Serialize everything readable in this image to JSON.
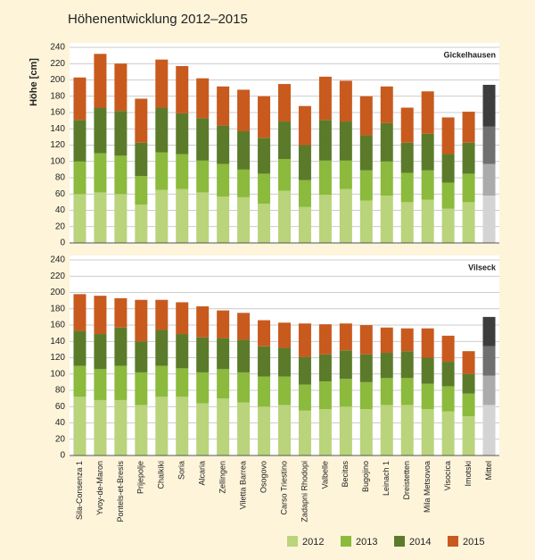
{
  "chart_data": [
    {
      "type": "bar",
      "stacked": true,
      "title": "Höhenentwicklung 2012–2015",
      "y_label": "Höhe [cm]",
      "subtitle": "Gickelhausen",
      "ylim": [
        0,
        240
      ],
      "yticks": [
        0,
        20,
        40,
        60,
        80,
        100,
        120,
        140,
        160,
        180,
        200,
        220,
        240
      ],
      "grid": true,
      "series": [
        {
          "name": "2012",
          "color": "#b9d47a",
          "last_color": "#d4d4d4",
          "values": [
            60,
            62,
            60,
            47,
            65,
            66,
            62,
            57,
            56,
            48,
            64,
            44,
            59,
            66,
            52,
            58,
            50,
            53,
            42,
            50,
            58
          ]
        },
        {
          "name": "2013",
          "color": "#8cba3c",
          "last_color": "#ababab",
          "values": [
            40,
            48,
            47,
            35,
            46,
            43,
            39,
            40,
            34,
            37,
            39,
            33,
            42,
            35,
            37,
            42,
            36,
            36,
            32,
            35,
            39
          ]
        },
        {
          "name": "2014",
          "color": "#5b7b2a",
          "last_color": "#707070",
          "values": [
            51,
            56,
            55,
            41,
            55,
            50,
            52,
            47,
            47,
            44,
            46,
            43,
            50,
            48,
            43,
            47,
            37,
            45,
            35,
            38,
            46
          ]
        },
        {
          "name": "2015",
          "color": "#c85a1e",
          "last_color": "#3d3d3d",
          "values": [
            52,
            66,
            58,
            54,
            59,
            58,
            49,
            48,
            51,
            51,
            46,
            48,
            53,
            50,
            48,
            45,
            43,
            52,
            45,
            38,
            51
          ]
        }
      ]
    },
    {
      "type": "bar",
      "stacked": true,
      "subtitle": "Vilseck",
      "ylim": [
        0,
        240
      ],
      "yticks": [
        0,
        20,
        40,
        60,
        80,
        100,
        120,
        140,
        160,
        180,
        200,
        220,
        240
      ],
      "grid": true,
      "categories": [
        "Sila-Consenza 1",
        "Yvoy-de-Maron",
        "Pontels-et-Bresis",
        "Prijepolje",
        "Chalkiki",
        "Soria",
        "Alcaria",
        "Zellingen",
        "Viletta Barrea",
        "Osogovo",
        "Carso Triestino",
        "Zadapni Rhodopi",
        "Valbelle",
        "Becitas",
        "Bugojino",
        "Leinach 1",
        "Dreistetten",
        "Mila Metsovoa",
        "Visocica",
        "Imotski",
        "Mittel"
      ],
      "series": [
        {
          "values": [
            72,
            68,
            68,
            62,
            72,
            72,
            64,
            70,
            65,
            60,
            62,
            55,
            57,
            60,
            57,
            62,
            62,
            57,
            54,
            48,
            62
          ]
        },
        {
          "values": [
            38,
            38,
            42,
            40,
            38,
            35,
            38,
            36,
            37,
            37,
            35,
            32,
            34,
            34,
            33,
            33,
            33,
            31,
            31,
            28,
            36
          ]
        },
        {
          "values": [
            43,
            43,
            47,
            38,
            44,
            42,
            43,
            38,
            40,
            37,
            35,
            34,
            33,
            35,
            34,
            31,
            33,
            32,
            30,
            24,
            36
          ]
        },
        {
          "values": [
            45,
            47,
            36,
            51,
            37,
            39,
            38,
            34,
            33,
            32,
            31,
            41,
            37,
            33,
            36,
            31,
            28,
            36,
            32,
            28,
            36
          ]
        }
      ]
    }
  ]
}
